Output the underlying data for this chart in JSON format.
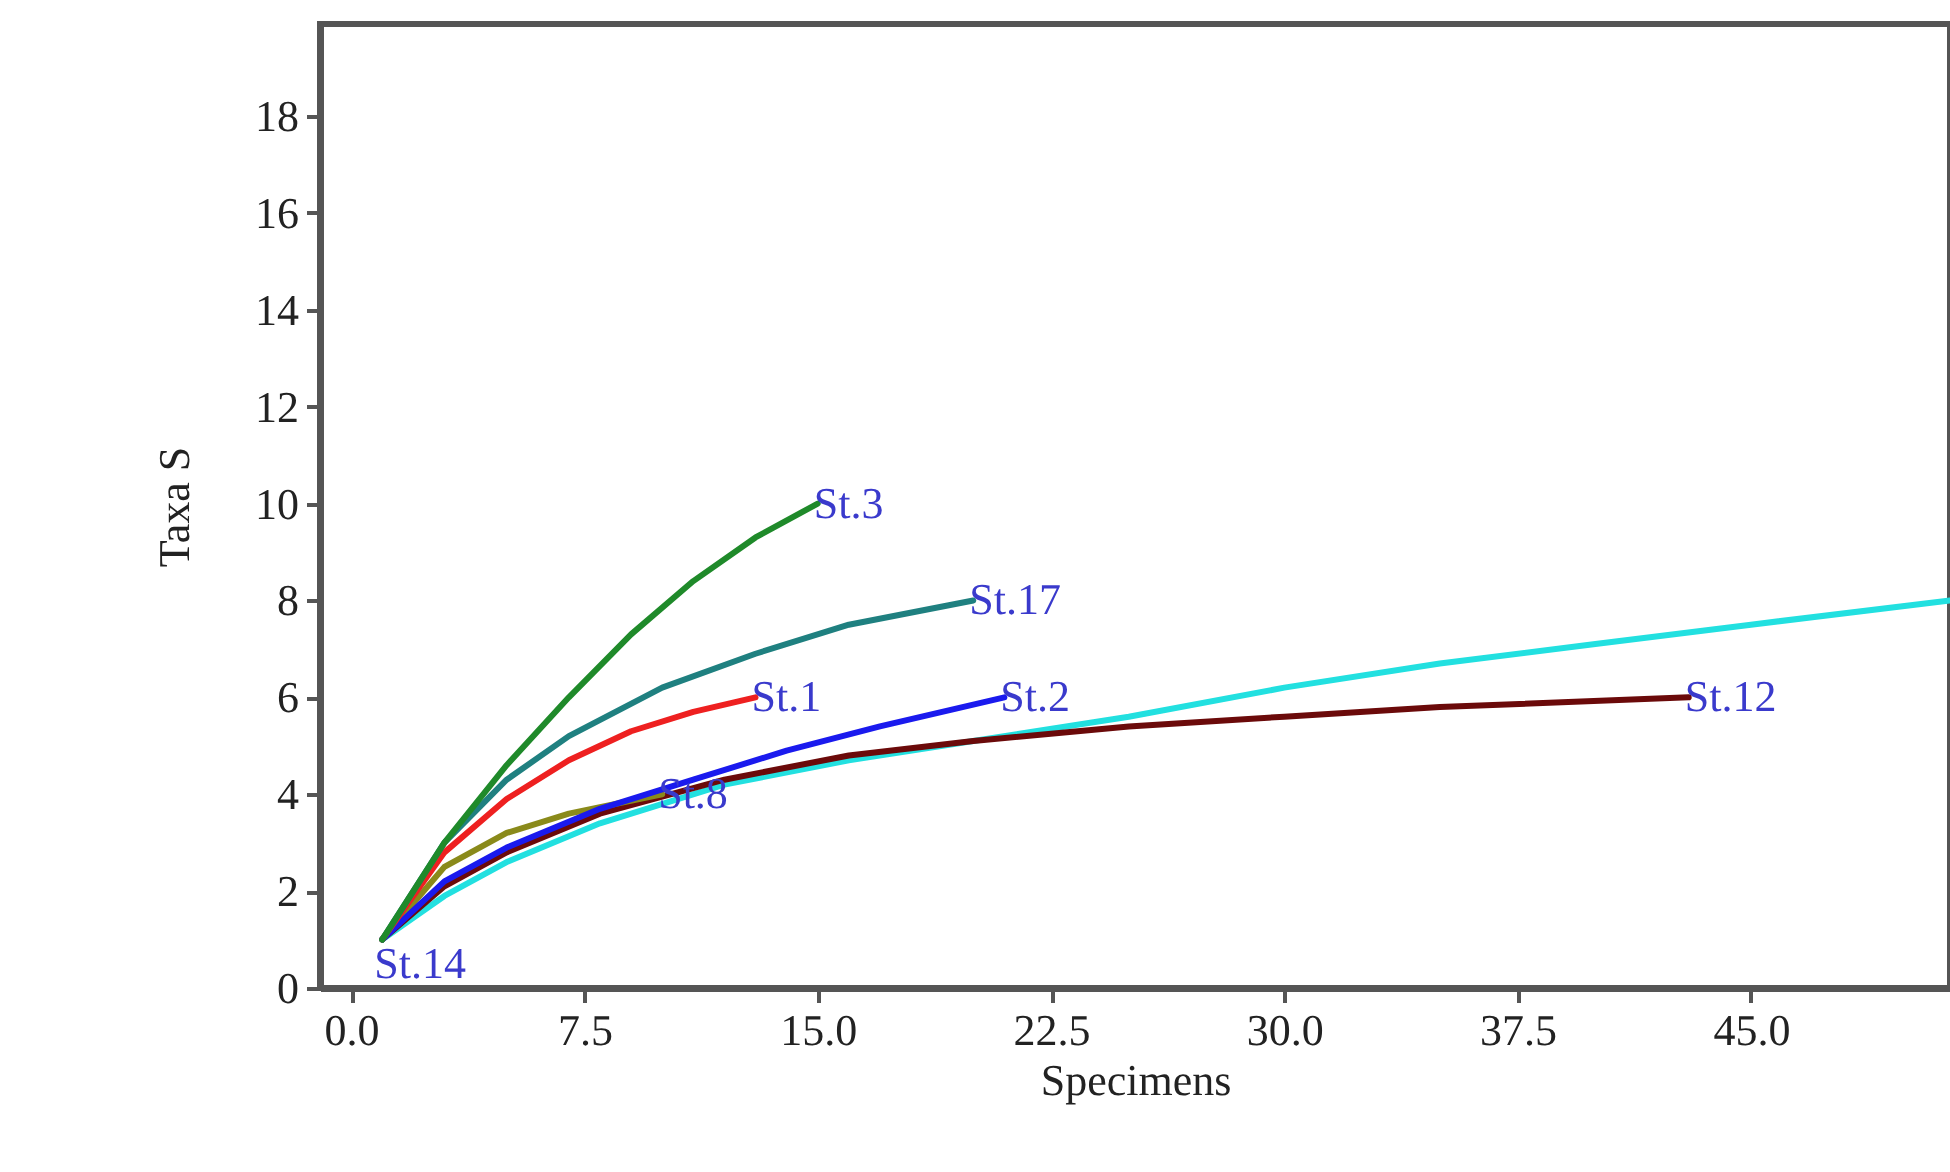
{
  "chart_data": {
    "type": "line",
    "xlabel": "Specimens",
    "ylabel": "Taxa S",
    "xlim": [
      -1,
      51.4
    ],
    "ylim": [
      0,
      19.9
    ],
    "xticks": [
      {
        "value": 0,
        "label": "0.0"
      },
      7.5,
      {
        "value": 15,
        "label": "15.0"
      },
      22.5,
      {
        "value": 30,
        "label": "30.0"
      },
      37.5,
      {
        "value": 45,
        "label": "45.0"
      }
    ],
    "yticks": [
      0,
      2,
      4,
      6,
      8,
      10,
      12,
      14,
      16,
      18
    ],
    "series": [
      {
        "color": "#22e0e0",
        "x": [
          1,
          3,
          5,
          8,
          12,
          16,
          20,
          25,
          30,
          35,
          40,
          45,
          51.4
        ],
        "values": [
          1,
          1.9,
          2.6,
          3.4,
          4.2,
          4.7,
          5.1,
          5.6,
          6.2,
          6.7,
          7.1,
          7.5,
          8.0
        ]
      },
      {
        "name": "St.12",
        "color": "#6b0a0a",
        "x": [
          1,
          3,
          5,
          8,
          12,
          16,
          20,
          25,
          30,
          35,
          43
        ],
        "values": [
          1,
          2.1,
          2.8,
          3.6,
          4.3,
          4.8,
          5.1,
          5.4,
          5.6,
          5.8,
          6
        ]
      },
      {
        "name": "St.8",
        "color": "#8a8a1a",
        "x": [
          1,
          3,
          5,
          7,
          10
        ],
        "values": [
          1,
          2.5,
          3.2,
          3.6,
          4
        ]
      },
      {
        "name": "St.2",
        "color": "#1a1aee",
        "x": [
          1,
          3,
          5,
          8,
          11,
          14,
          17,
          21
        ],
        "values": [
          1,
          2.2,
          2.9,
          3.7,
          4.3,
          4.9,
          5.4,
          6
        ]
      },
      {
        "name": "St.1",
        "color": "#ee2020",
        "x": [
          1,
          3,
          5,
          7,
          9,
          11,
          13
        ],
        "values": [
          1,
          2.8,
          3.9,
          4.7,
          5.3,
          5.7,
          6
        ]
      },
      {
        "name": "St.17",
        "color": "#1f8080",
        "x": [
          1,
          3,
          5,
          7,
          10,
          13,
          16,
          20
        ],
        "values": [
          1,
          3.0,
          4.3,
          5.2,
          6.2,
          6.9,
          7.5,
          8
        ]
      },
      {
        "name": "St.3",
        "color": "#1f8a2a",
        "x": [
          1,
          3,
          5,
          7,
          9,
          11,
          13,
          15
        ],
        "values": [
          1,
          3.0,
          4.6,
          6.0,
          7.3,
          8.4,
          9.3,
          10
        ]
      }
    ],
    "annotations": [
      {
        "text": "St.14",
        "x": 1,
        "y": 1
      }
    ]
  }
}
